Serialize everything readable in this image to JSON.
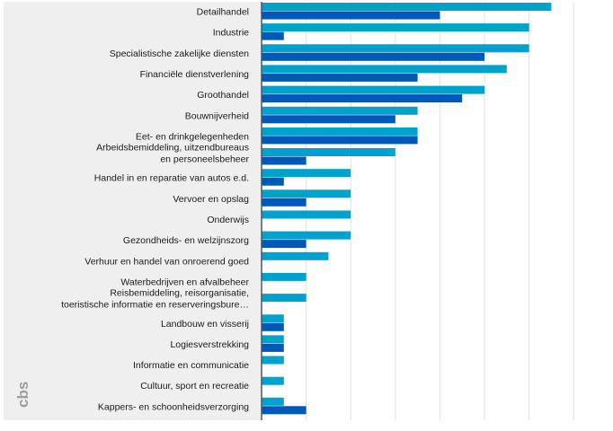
{
  "logo_text": "cbs",
  "colors": {
    "panel_bg": "#efefef",
    "series_1": "#00a1cd",
    "series_2": "#0058b8",
    "axis": "#555555",
    "grid": "#e2e2e2",
    "label": "#1a1a1a",
    "logo": "#9c9c9c"
  },
  "chart_data": {
    "type": "bar",
    "orientation": "horizontal",
    "title": "",
    "xlabel": "",
    "ylabel": "",
    "xlim": [
      0,
      16
    ],
    "grid": true,
    "legend": "none",
    "categories": [
      "Detailhandel",
      "Industrie",
      "Specialistische zakelijke diensten",
      "Financiële dienstverlening",
      "Groothandel",
      "Bouwnijverheid",
      "Eet- en drinkgelegenheden",
      "Arbeidsbemiddeling, uitzendbureaus en personeelsbeheer",
      "Handel in en reparatie van autos e.d.",
      "Vervoer en opslag",
      "Onderwijs",
      "Gezondheids- en welzijnszorg",
      "Verhuur en handel van onroerend goed",
      "Waterbedrijven en afvalbeheer",
      "Reisbemiddeling, reisorganisatie, toeristische informatie en reserveringsbure…",
      "Landbouw en visserij",
      "Logiesverstrekking",
      "Informatie en communicatie",
      "Cultuur, sport en recreatie",
      "Kappers- en schoonheidsverzorging"
    ],
    "category_lines": [
      [
        "Detailhandel"
      ],
      [
        "Industrie"
      ],
      [
        "Specialistische zakelijke diensten"
      ],
      [
        "Financiële dienstverlening"
      ],
      [
        "Groothandel"
      ],
      [
        "Bouwnijverheid"
      ],
      [
        "Eet- en drinkgelegenheden"
      ],
      [
        "Arbeidsbemiddeling, uitzendbureaus",
        "en personeelsbeheer"
      ],
      [
        "Handel in en reparatie van autos e.d."
      ],
      [
        "Vervoer en opslag"
      ],
      [
        "Onderwijs"
      ],
      [
        "Gezondheids- en welzijnszorg"
      ],
      [
        "Verhuur en handel van onroerend goed"
      ],
      [
        "Waterbedrijven en afvalbeheer"
      ],
      [
        "Reisbemiddeling, reisorganisatie,",
        "toeristische informatie en reserveringsbure…"
      ],
      [
        "Landbouw en visserij"
      ],
      [
        "Logiesverstrekking"
      ],
      [
        "Informatie en communicatie"
      ],
      [
        "Cultuur, sport en recreatie"
      ],
      [
        "Kappers- en schoonheidsverzorging"
      ]
    ],
    "series": [
      {
        "values": [
          13,
          12,
          12,
          11,
          10,
          7,
          7,
          6,
          4,
          4,
          4,
          4,
          3,
          2,
          2,
          1,
          1,
          1,
          1,
          1
        ]
      },
      {
        "values": [
          8,
          1,
          10,
          7,
          9,
          6,
          7,
          2,
          1,
          2,
          0,
          2,
          0,
          0,
          0,
          1,
          1,
          0,
          0,
          2
        ]
      }
    ]
  }
}
